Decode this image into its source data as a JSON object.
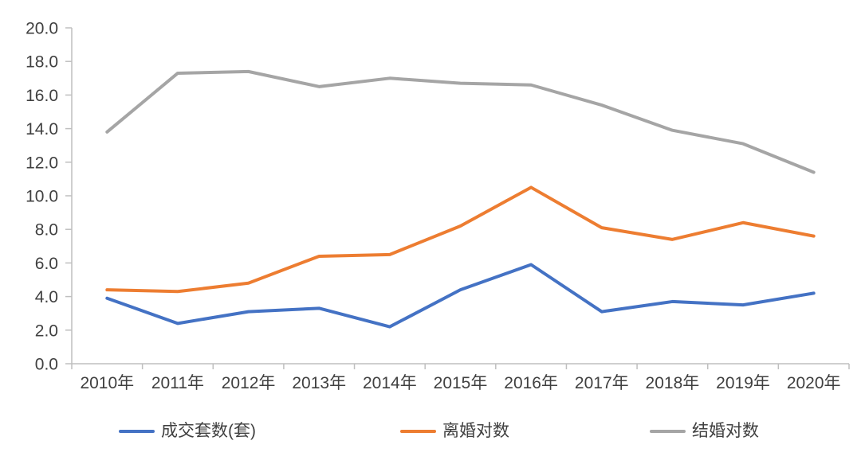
{
  "chart_data": {
    "type": "line",
    "title": "",
    "xlabel": "",
    "ylabel": "",
    "categories": [
      "2010年",
      "2011年",
      "2012年",
      "2013年",
      "2014年",
      "2015年",
      "2016年",
      "2017年",
      "2018年",
      "2019年",
      "2020年"
    ],
    "series": [
      {
        "key": "transactions",
        "name": "成交套数(套)",
        "color": "#4472C4",
        "values": [
          3.9,
          2.4,
          3.1,
          3.3,
          2.2,
          4.4,
          5.9,
          3.1,
          3.7,
          3.5,
          4.2
        ]
      },
      {
        "key": "divorces",
        "name": "离婚对数",
        "color": "#ED7D31",
        "values": [
          4.4,
          4.3,
          4.8,
          6.4,
          6.5,
          8.2,
          10.5,
          8.1,
          7.4,
          8.4,
          7.6
        ]
      },
      {
        "key": "marriages",
        "name": "结婚对数",
        "color": "#A5A5A5",
        "values": [
          13.8,
          17.3,
          17.4,
          16.5,
          17.0,
          16.7,
          16.6,
          15.4,
          13.9,
          13.1,
          11.4
        ]
      }
    ],
    "ylim": [
      0,
      20
    ],
    "ytick_step": 2,
    "ytick_labels": [
      "0.0",
      "2.0",
      "4.0",
      "6.0",
      "8.0",
      "10.0",
      "12.0",
      "14.0",
      "16.0",
      "18.0",
      "20.0"
    ],
    "grid": false,
    "legend_position": "bottom",
    "axis_color": "#BFBFBF",
    "label_color": "#404040",
    "background": "#FFFFFF"
  }
}
